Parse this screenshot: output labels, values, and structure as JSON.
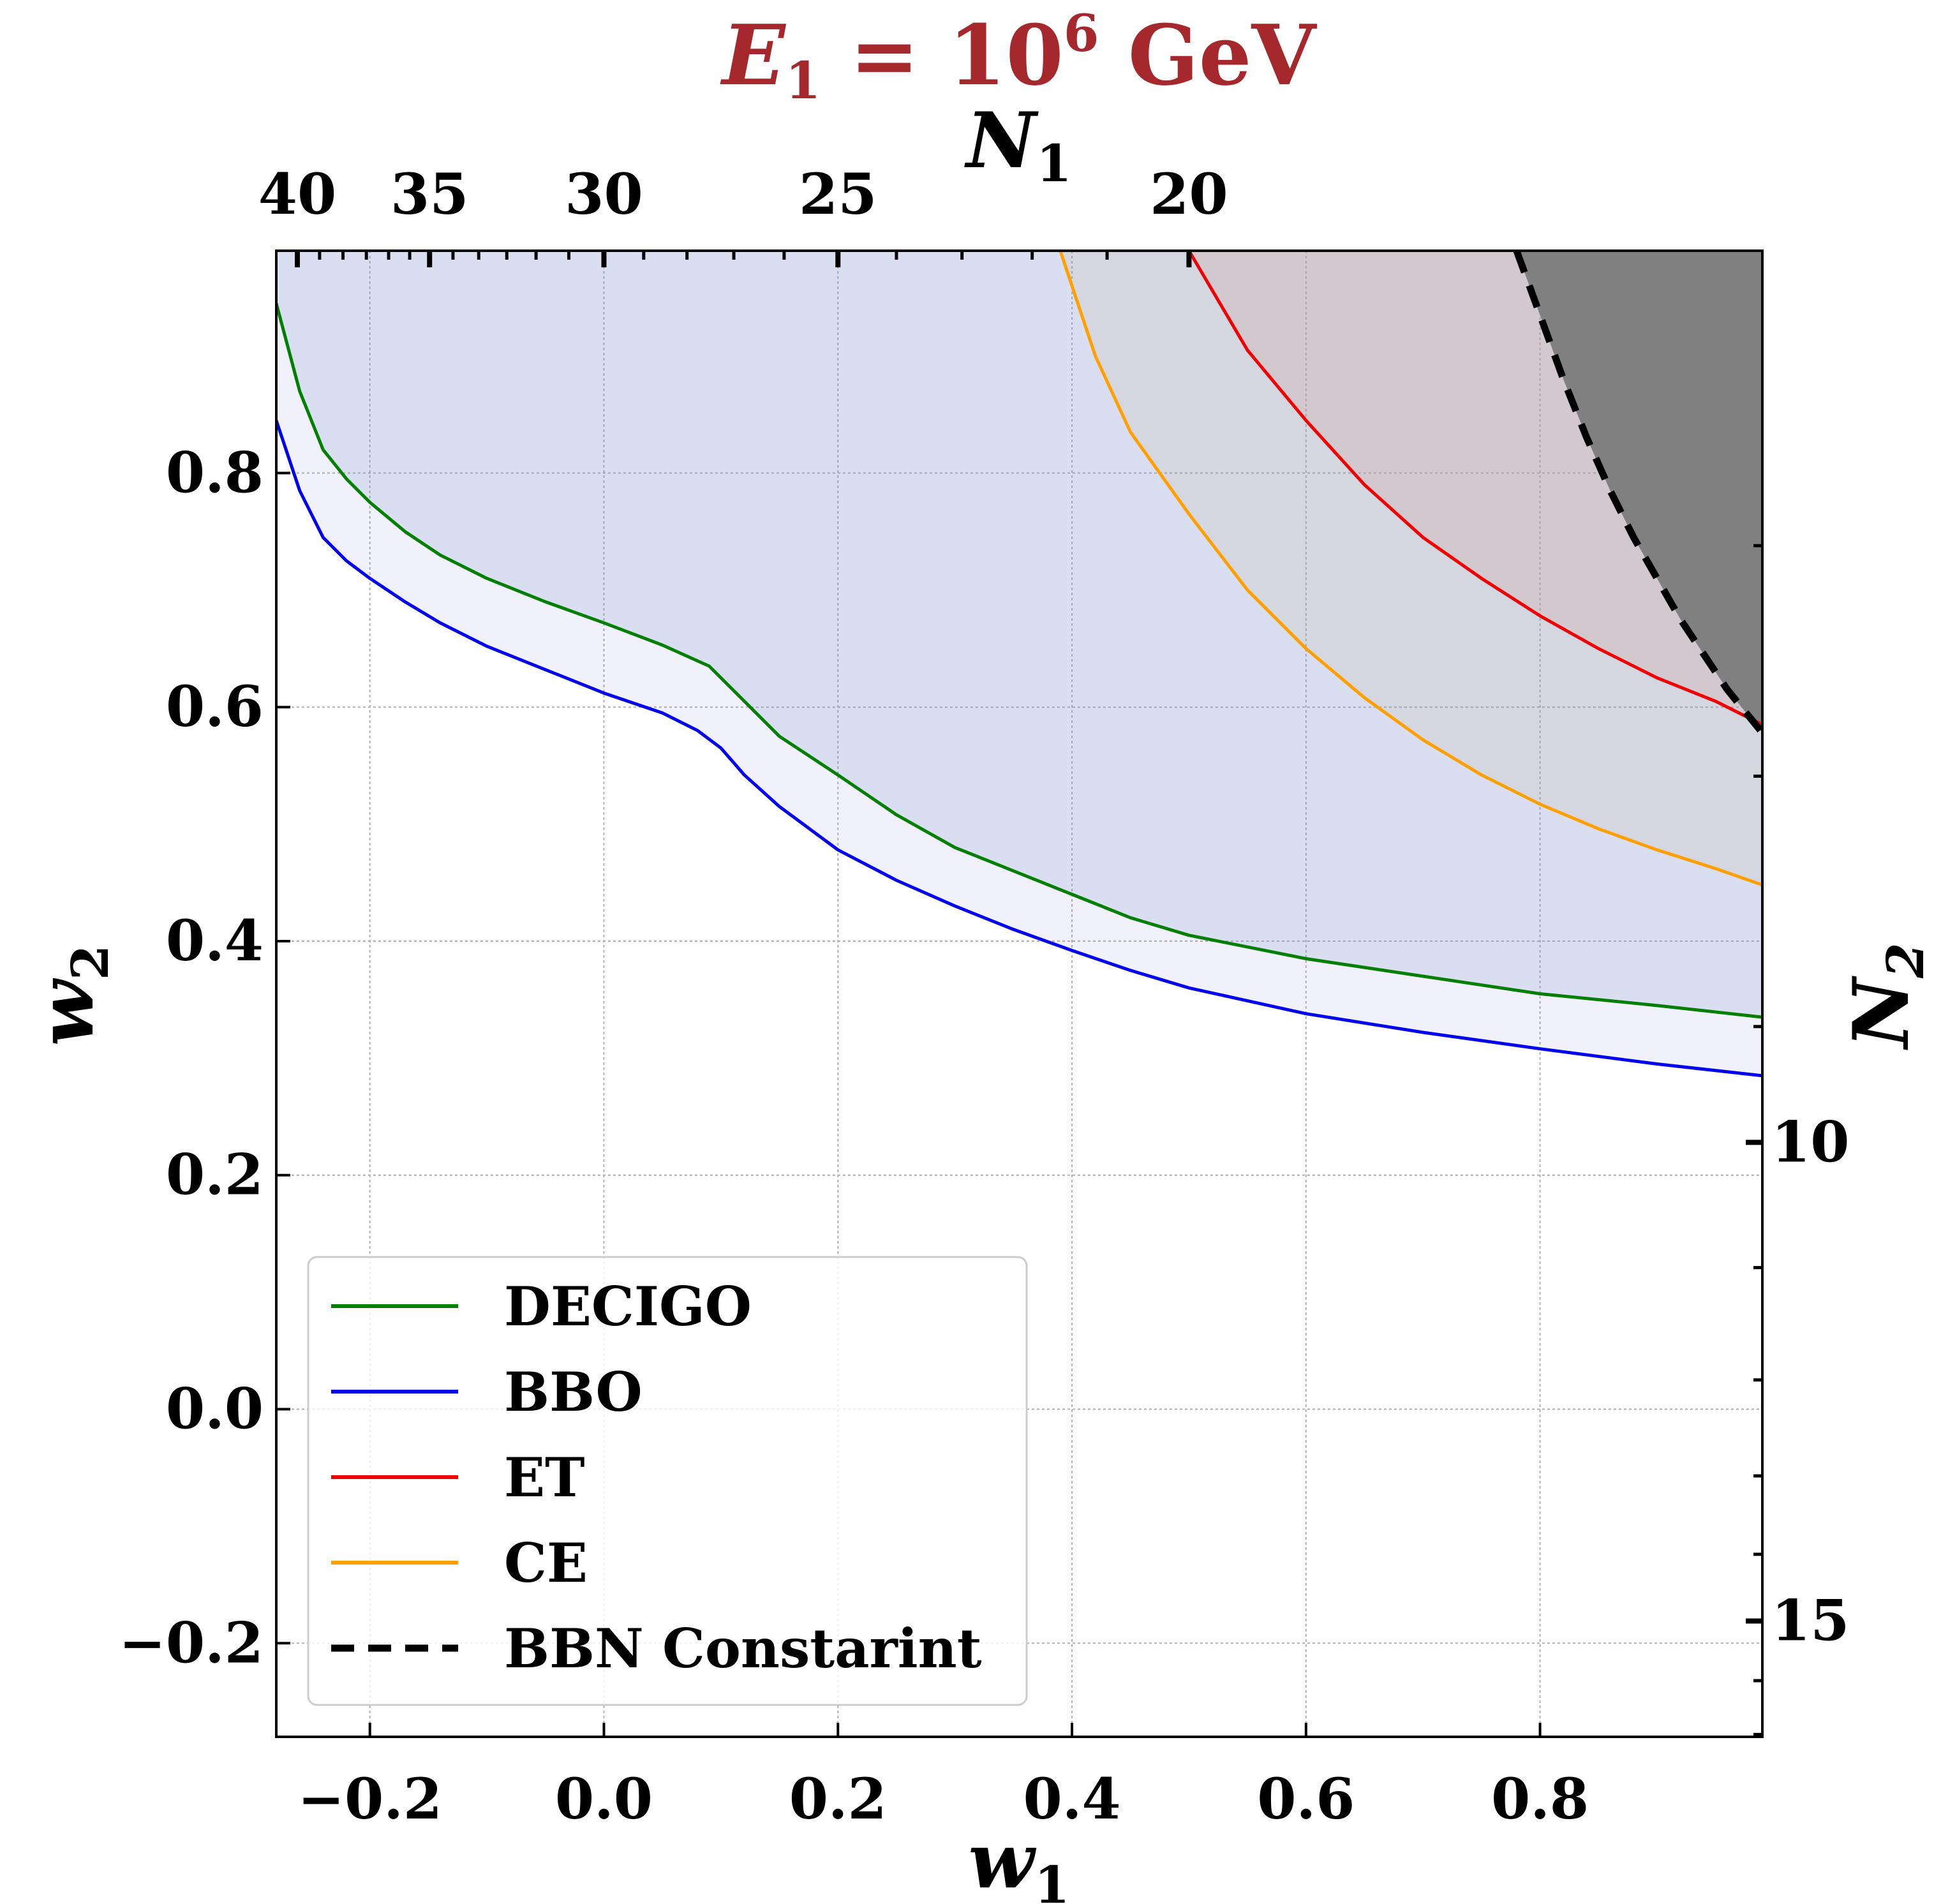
{
  "chart_data": {
    "type": "line",
    "title": {
      "symbol": "E",
      "subscript": "1",
      "relation": " = 10",
      "superscript": "6",
      "unit": " GeV"
    },
    "xlabel": {
      "symbol": "w",
      "subscript": "1"
    },
    "ylabel": {
      "symbol": "w",
      "subscript": "2"
    },
    "top_xlabel": {
      "symbol": "N",
      "subscript": "1"
    },
    "right_ylabel": {
      "symbol": "N",
      "subscript": "2"
    },
    "xlim": [
      -0.28,
      0.99
    ],
    "ylim": [
      -0.28,
      0.99
    ],
    "grid": true,
    "legend_position": "lower-left",
    "x_ticks": [
      -0.2,
      0.0,
      0.2,
      0.4,
      0.6,
      0.8
    ],
    "x_tick_labels": [
      "−0.2",
      "0.0",
      "0.2",
      "0.4",
      "0.6",
      "0.8"
    ],
    "y_ticks": [
      -0.2,
      0.0,
      0.2,
      0.4,
      0.6,
      0.8
    ],
    "y_tick_labels": [
      "−0.2",
      "0.0",
      "0.2",
      "0.4",
      "0.6",
      "0.8"
    ],
    "top_ticks": [
      {
        "w1": -0.262,
        "label": "40"
      },
      {
        "w1": -0.149,
        "label": "35"
      },
      {
        "w1": 0.0,
        "label": "30"
      },
      {
        "w1": 0.2,
        "label": "25"
      },
      {
        "w1": 0.5,
        "label": "20"
      }
    ],
    "top_minor_ticks_w1": [
      -0.243,
      -0.223,
      -0.203,
      -0.184,
      -0.166,
      -0.129,
      -0.107,
      -0.083,
      -0.058,
      -0.03,
      0.034,
      0.071,
      0.111,
      0.154,
      0.25,
      0.306,
      0.366,
      0.43
    ],
    "right_ticks": [
      {
        "w2": 0.228,
        "label": "10"
      },
      {
        "w2": -0.181,
        "label": "15"
      }
    ],
    "right_minor_ticks_w2": [
      0.738,
      0.541,
      0.327,
      0.121,
      0.025,
      -0.057,
      -0.124,
      -0.232,
      -0.278
    ],
    "series": [
      {
        "name": "DECIGO",
        "color": "#007f00",
        "fill": "rgba(120,150,190,0.20)",
        "x": [
          -0.28,
          -0.26,
          -0.24,
          -0.22,
          -0.2,
          -0.17,
          -0.14,
          -0.1,
          -0.05,
          0.0,
          0.05,
          0.09,
          0.12,
          0.15,
          0.2,
          0.25,
          0.3,
          0.35,
          0.4,
          0.45,
          0.5,
          0.6,
          0.7,
          0.8,
          0.9,
          0.99
        ],
        "y": [
          0.945,
          0.87,
          0.82,
          0.795,
          0.775,
          0.75,
          0.73,
          0.71,
          0.69,
          0.672,
          0.653,
          0.635,
          0.605,
          0.575,
          0.542,
          0.508,
          0.48,
          0.46,
          0.44,
          0.42,
          0.405,
          0.385,
          0.37,
          0.355,
          0.345,
          0.335
        ]
      },
      {
        "name": "BBO",
        "color": "#0000f0",
        "fill": "rgba(130,130,230,0.11)",
        "x": [
          -0.28,
          -0.26,
          -0.24,
          -0.22,
          -0.2,
          -0.17,
          -0.14,
          -0.1,
          -0.05,
          0.0,
          0.05,
          0.08,
          0.1,
          0.12,
          0.15,
          0.2,
          0.25,
          0.3,
          0.35,
          0.4,
          0.45,
          0.5,
          0.6,
          0.7,
          0.8,
          0.9,
          0.99
        ],
        "y": [
          0.845,
          0.785,
          0.745,
          0.725,
          0.71,
          0.69,
          0.672,
          0.652,
          0.632,
          0.612,
          0.595,
          0.58,
          0.565,
          0.542,
          0.515,
          0.478,
          0.452,
          0.43,
          0.41,
          0.392,
          0.375,
          0.36,
          0.338,
          0.322,
          0.308,
          0.295,
          0.285
        ]
      },
      {
        "name": "ET",
        "color": "#f00000",
        "fill": "rgba(210,150,150,0.25)",
        "x": [
          0.5,
          0.55,
          0.6,
          0.65,
          0.7,
          0.75,
          0.8,
          0.85,
          0.9,
          0.95,
          0.99
        ],
        "y": [
          0.99,
          0.905,
          0.845,
          0.79,
          0.745,
          0.71,
          0.678,
          0.65,
          0.625,
          0.605,
          0.585
        ]
      },
      {
        "name": "CE",
        "color": "#ffa000",
        "fill": "rgba(190,180,130,0.14)",
        "x": [
          0.39,
          0.42,
          0.45,
          0.5,
          0.55,
          0.6,
          0.65,
          0.7,
          0.75,
          0.8,
          0.85,
          0.9,
          0.95,
          0.99
        ],
        "y": [
          0.99,
          0.9,
          0.835,
          0.765,
          0.7,
          0.65,
          0.608,
          0.572,
          0.542,
          0.517,
          0.496,
          0.478,
          0.462,
          0.448
        ]
      },
      {
        "name": "BBN Constarint",
        "color": "#000000",
        "dashed": true,
        "fill": "#808080",
        "x": [
          0.78,
          0.8,
          0.82,
          0.84,
          0.86,
          0.88,
          0.9,
          0.92,
          0.94,
          0.96,
          0.99
        ],
        "y": [
          0.99,
          0.935,
          0.88,
          0.83,
          0.785,
          0.745,
          0.71,
          0.675,
          0.645,
          0.615,
          0.578
        ]
      }
    ]
  }
}
